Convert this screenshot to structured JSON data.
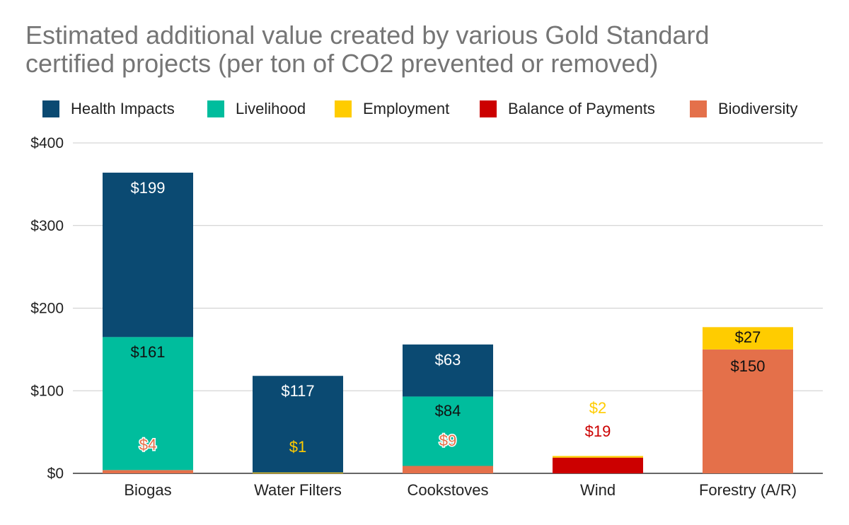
{
  "chart_data": {
    "type": "bar",
    "stacked": true,
    "title_lines": [
      "Estimated additional value created by various Gold Standard",
      "certified projects (per ton of CO2 prevented or removed)"
    ],
    "categories": [
      "Biogas",
      "Water Filters",
      "Cookstoves",
      "Wind",
      "Forestry (A/R)"
    ],
    "series": [
      {
        "name": "Health Impacts",
        "color": "#0b4a72",
        "values": [
          199,
          117,
          63,
          0,
          0
        ],
        "labels": [
          "$199",
          "$117",
          "$63",
          null,
          null
        ],
        "label_color": "#ffffff"
      },
      {
        "name": "Livelihood",
        "color": "#00bd9d",
        "values": [
          161,
          0,
          84,
          0,
          0
        ],
        "labels": [
          "$161",
          null,
          "$84",
          null,
          null
        ],
        "label_color": "#111111"
      },
      {
        "name": "Employment",
        "color": "#ffcc00",
        "values": [
          0,
          1,
          0,
          2,
          27
        ],
        "labels": [
          null,
          "$1",
          null,
          "$2",
          "$27"
        ],
        "label_color": "#ffcc00"
      },
      {
        "name": "Balance of Payments",
        "color": "#cc0000",
        "values": [
          0,
          0,
          0,
          19,
          0
        ],
        "labels": [
          null,
          null,
          null,
          "$19",
          null
        ],
        "label_color": "#cc0000"
      },
      {
        "name": "Biodiversity",
        "color": "#e4704a",
        "values": [
          4,
          0,
          9,
          0,
          150
        ],
        "labels": [
          "$4",
          null,
          "$9",
          null,
          "$150"
        ],
        "label_color": "#e4704a"
      }
    ],
    "stack_order": [
      "Biodiversity",
      "Balance of Payments",
      "Employment",
      "Livelihood",
      "Health Impacts"
    ],
    "ylim": [
      0,
      400
    ],
    "yticks": [
      0,
      100,
      200,
      300,
      400
    ],
    "ytick_labels": [
      "$0",
      "$100",
      "$200",
      "$300",
      "$400"
    ],
    "xlabel": "",
    "ylabel": "",
    "legend_position": "top",
    "grid": true
  }
}
